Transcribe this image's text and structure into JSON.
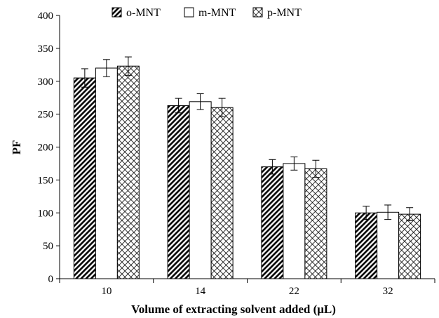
{
  "chart_data": {
    "type": "bar",
    "categories": [
      "10",
      "14",
      "22",
      "32"
    ],
    "series": [
      {
        "name": "o-MNT",
        "values": [
          305,
          263,
          170,
          100
        ],
        "errors": [
          14,
          11,
          11,
          10
        ],
        "pattern": "diagonal-hatch"
      },
      {
        "name": "m-MNT",
        "values": [
          320,
          269,
          175,
          101
        ],
        "errors": [
          13,
          12,
          10,
          11
        ],
        "pattern": "none"
      },
      {
        "name": "p-MNT",
        "values": [
          323,
          260,
          167,
          98
        ],
        "errors": [
          14,
          14,
          13,
          10
        ],
        "pattern": "crosshatch"
      }
    ],
    "xlabel": "Volume of extracting solvent added (μL)",
    "ylabel": "PF",
    "ylim": [
      0,
      400
    ],
    "yticks": [
      "0",
      "50",
      "100",
      "150",
      "200",
      "250",
      "300",
      "350",
      "400"
    ],
    "grid": false,
    "legend": "top"
  }
}
